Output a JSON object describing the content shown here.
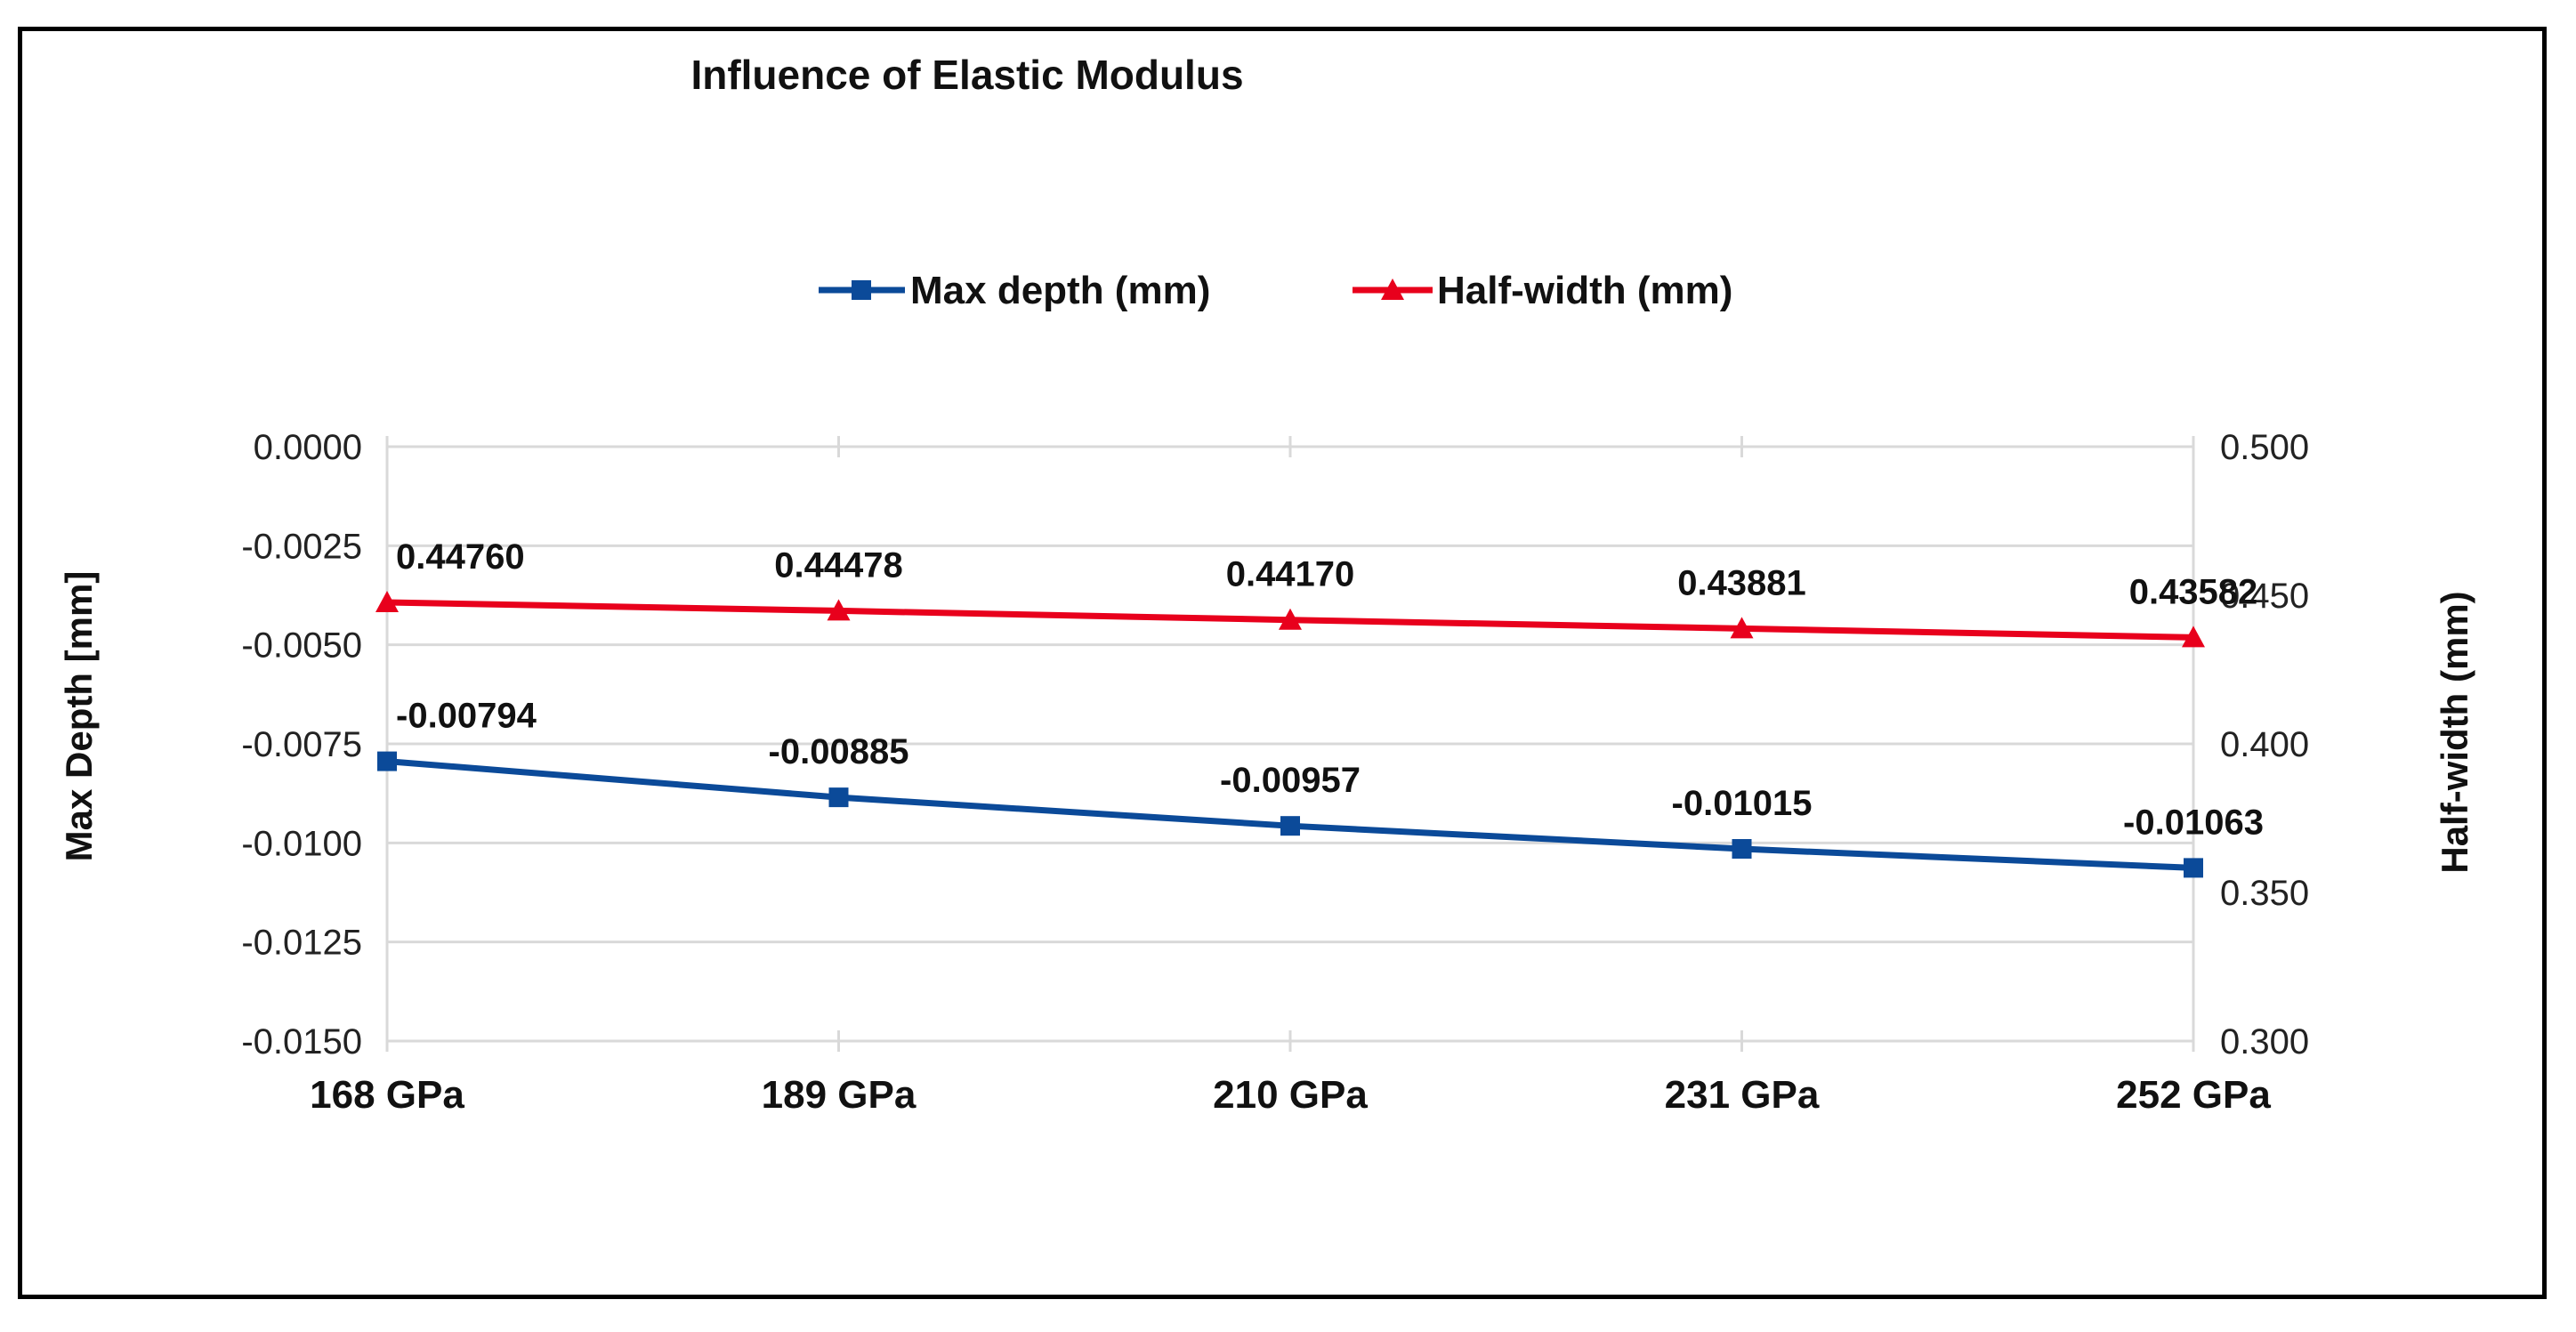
{
  "chart_data": {
    "type": "line",
    "title": "Influence of Elastic Modulus",
    "categories": [
      "168 GPa",
      "189 GPa",
      "210 GPa",
      "231 GPa",
      "252 GPa"
    ],
    "series": [
      {
        "name": "Max depth (mm)",
        "axis": "left",
        "color": "#0b4a99",
        "marker": "square",
        "values": [
          -0.00794,
          -0.00885,
          -0.00957,
          -0.01015,
          -0.01063
        ],
        "labels": [
          "-0.00794",
          "-0.00885",
          "-0.00957",
          "-0.01015",
          "-0.01063"
        ]
      },
      {
        "name": "Half-width (mm)",
        "axis": "right",
        "color": "#e8001c",
        "marker": "triangle",
        "values": [
          0.4476,
          0.44478,
          0.4417,
          0.43881,
          0.43582
        ],
        "labels": [
          "0.44760",
          "0.44478",
          "0.44170",
          "0.43881",
          "0.43582"
        ]
      }
    ],
    "ylabel_left": "Max Depth [mm]",
    "ylabel_right": "Half-width (mm)",
    "ylim_left": [
      -0.015,
      0
    ],
    "ylim_right": [
      0.3,
      0.5
    ],
    "yticks_left": [
      "0.0000",
      "-0.0025",
      "-0.0050",
      "-0.0075",
      "-0.0100",
      "-0.0125",
      "-0.0150"
    ],
    "yticks_right": [
      "0.500",
      "0.450",
      "0.400",
      "0.350",
      "0.300"
    ],
    "grid": true,
    "legend_position": "top-center"
  }
}
